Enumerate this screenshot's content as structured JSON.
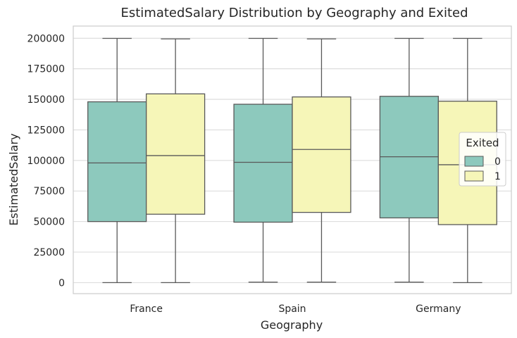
{
  "chart_data": {
    "type": "box",
    "title": "EstimatedSalary Distribution by Geography and Exited",
    "xlabel": "Geography",
    "ylabel": "EstimatedSalary",
    "ylim": [
      -9000,
      210000
    ],
    "yticks": [
      0,
      25000,
      50000,
      75000,
      100000,
      125000,
      150000,
      175000,
      200000
    ],
    "grid": "horizontal",
    "categories": [
      "France",
      "Spain",
      "Germany"
    ],
    "legend": {
      "title": "Exited",
      "placement": "center-right"
    },
    "series": [
      {
        "name": "0",
        "color": "#8dc9bd",
        "boxes": [
          {
            "category": "France",
            "min": 0,
            "q1": 50000,
            "median": 98000,
            "q3": 148000,
            "max": 199900
          },
          {
            "category": "Spain",
            "min": 400,
            "q1": 49500,
            "median": 98500,
            "q3": 146000,
            "max": 199900
          },
          {
            "category": "Germany",
            "min": 400,
            "q1": 53000,
            "median": 103000,
            "q3": 152500,
            "max": 199900
          }
        ]
      },
      {
        "name": "1",
        "color": "#f6f6b8",
        "boxes": [
          {
            "category": "France",
            "min": 0,
            "q1": 56000,
            "median": 104000,
            "q3": 154500,
            "max": 199500
          },
          {
            "category": "Spain",
            "min": 400,
            "q1": 57500,
            "median": 109000,
            "q3": 152000,
            "max": 199500
          },
          {
            "category": "Germany",
            "min": 0,
            "q1": 47500,
            "median": 96500,
            "q3": 148500,
            "max": 199900
          }
        ]
      }
    ]
  }
}
